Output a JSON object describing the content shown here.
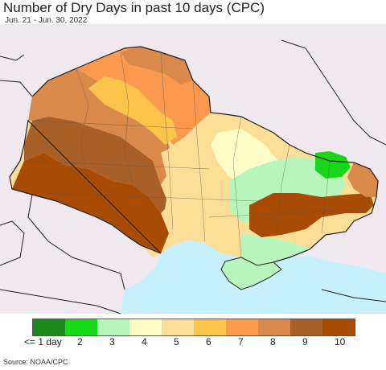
{
  "title": "Number of Dry Days in past 10 days (CPC)",
  "subtitle": "Jun. 21 - Jun. 30, 2022",
  "source": "Source: NOAA/CPC",
  "colors": {
    "land_outside": "#efe9ef",
    "sea": "#c6f0fb",
    "border": "#1f1f1f"
  },
  "legend": {
    "colors": [
      "#1a8a1a",
      "#16d816",
      "#b8f5bd",
      "#fefdc8",
      "#fdde97",
      "#fcc44a",
      "#fb9951",
      "#d9894a",
      "#a96028",
      "#a84b05"
    ],
    "labels": [
      "<= 1 day",
      "2",
      "3",
      "4",
      "5",
      "6",
      "7",
      "8",
      "9",
      "10"
    ]
  }
}
